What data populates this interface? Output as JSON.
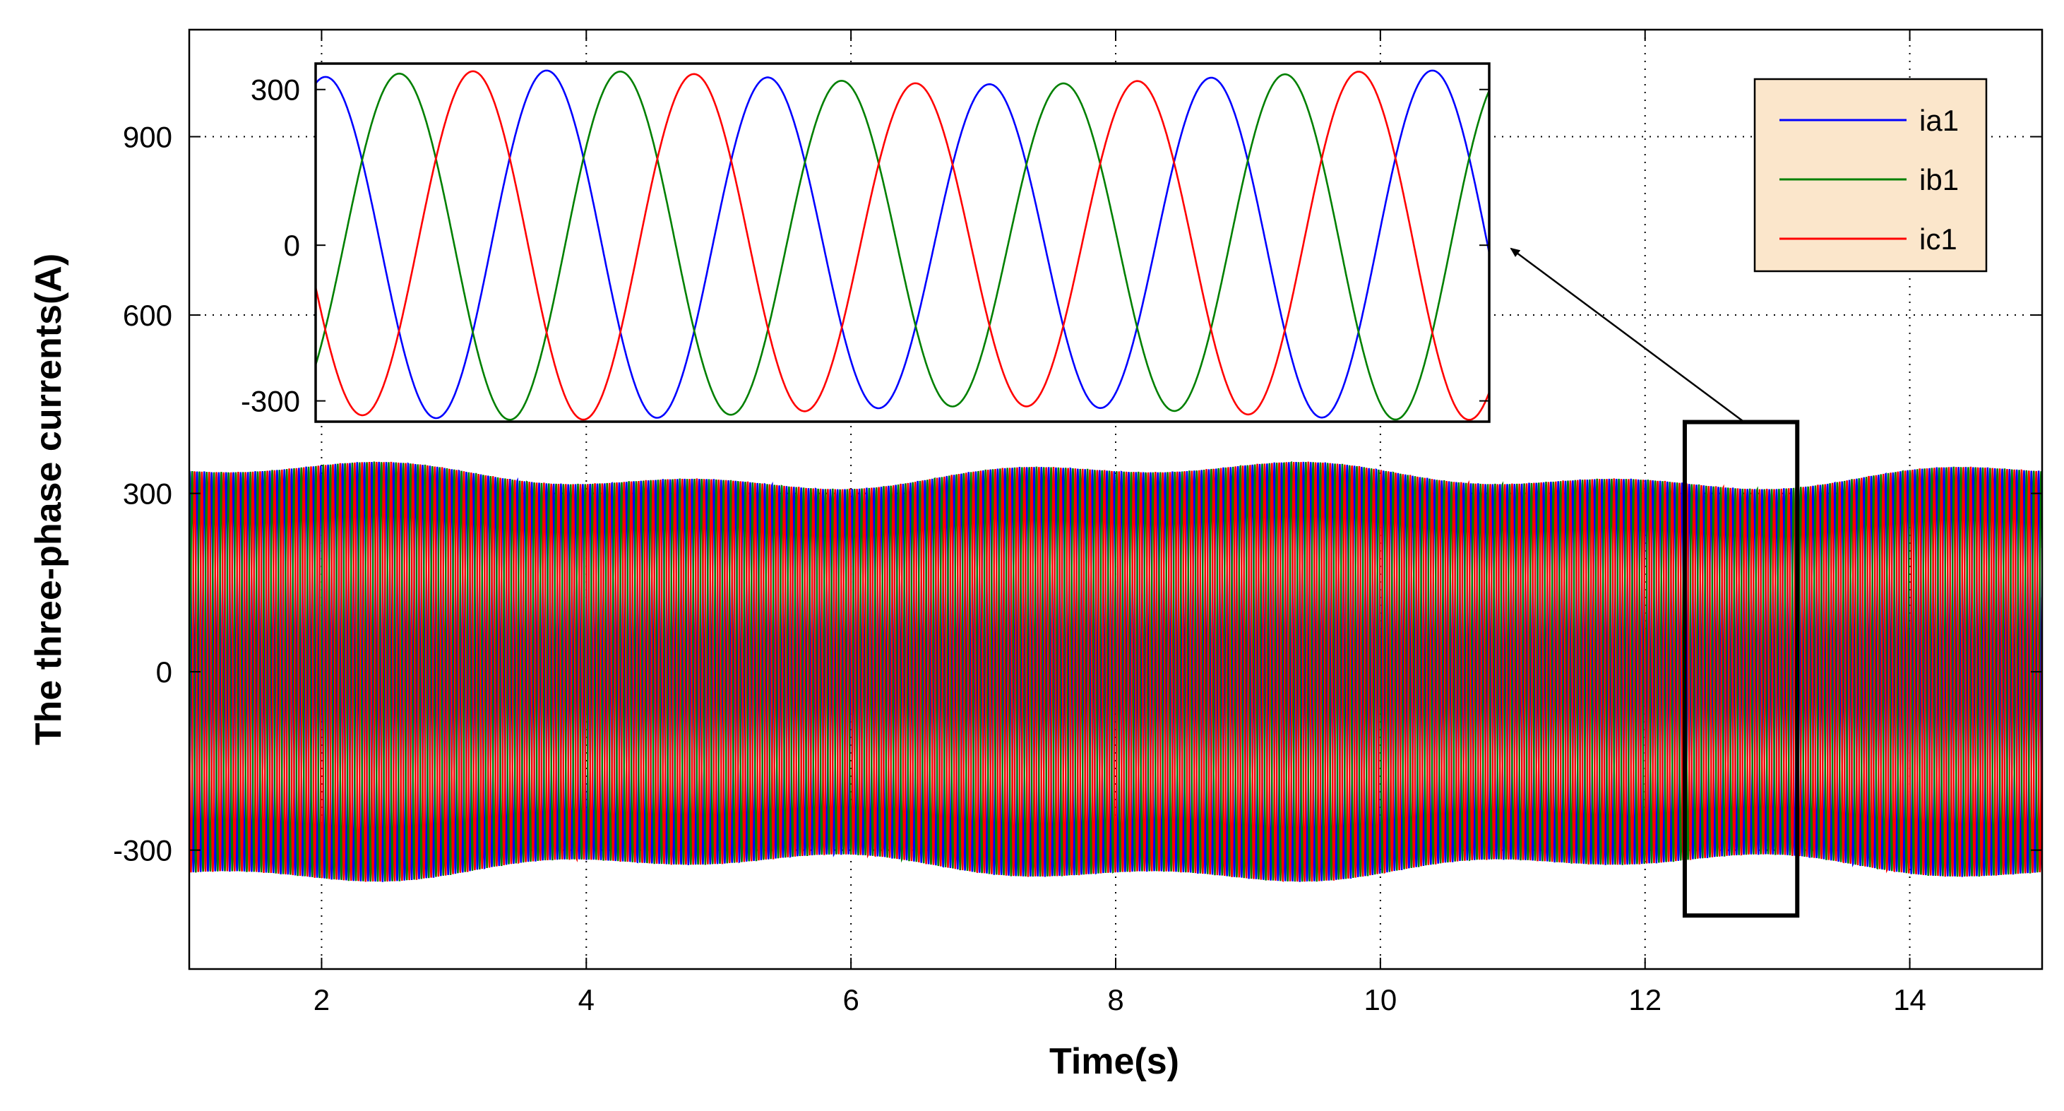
{
  "chart_data": {
    "type": "line",
    "xlabel": "Time(s)",
    "ylabel": "The three-phase currents(A)",
    "xlim": [
      1,
      15
    ],
    "ylim": [
      -500,
      1080
    ],
    "x_ticks": [
      "2",
      "4",
      "6",
      "8",
      "10",
      "12",
      "14"
    ],
    "y_ticks": [
      {
        "value": -300,
        "label": "-300"
      },
      {
        "value": 0,
        "label": "0"
      },
      {
        "value": 300,
        "label": "300"
      },
      {
        "value": 600,
        "label": "600"
      },
      {
        "value": 900,
        "label": "900"
      }
    ],
    "grid": true,
    "legend": {
      "placement": "top-right",
      "background": "#fbe6cb"
    },
    "series": [
      {
        "name": "ia1",
        "color": "#0000ff",
        "amplitude": 330,
        "phase_deg": 0
      },
      {
        "name": "ib1",
        "color": "#008000",
        "amplitude": 330,
        "phase_deg": -120
      },
      {
        "name": "ic1",
        "color": "#ff0000",
        "amplitude": 330,
        "phase_deg": 120
      }
    ],
    "inset": {
      "zoom_region": {
        "x": [
          12.3,
          13.15
        ],
        "y": [
          -410,
          420
        ]
      },
      "y_ticks": [
        {
          "value": 300,
          "label": "300"
        },
        {
          "value": 0,
          "label": "0"
        },
        {
          "value": -300,
          "label": "-300"
        }
      ],
      "ylim": [
        -340,
        350
      ],
      "cycles_shown": 5.3
    }
  }
}
